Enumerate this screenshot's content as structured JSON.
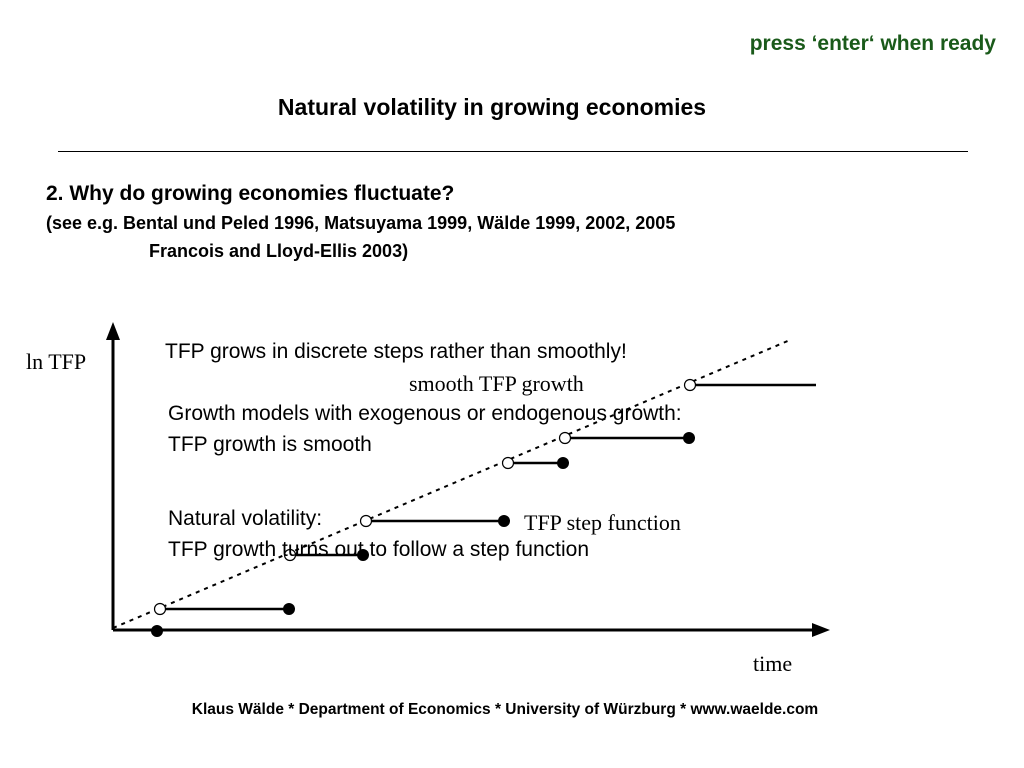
{
  "header": {
    "hint": "press ‘enter‘ when ready",
    "title": "Natural volatility in growing economies"
  },
  "section": {
    "question": "2. Why do growing economies fluctuate?",
    "refs_line1": "(see e.g. Bental und Peled 1996, Matsuyama 1999, Wälde 1999, 2002, 2005",
    "refs_line2": "Francois and Lloyd-Ellis 2003)"
  },
  "diagram": {
    "y_axis_label": "ln TFP",
    "x_axis_label": "time",
    "smooth_label": "smooth TFP growth",
    "step_label": "TFP step function",
    "text_main": "TFP grows in discrete steps rather than smoothly!",
    "text_models_1": "Growth models with exogenous or endogenous growth:",
    "text_models_2": "TFP growth is smooth",
    "text_natural_1": "Natural volatility:",
    "text_natural_2": "TFP growth turns out to follow a step function"
  },
  "footer": {
    "text": "Klaus Wälde  *  Department of Economics  * University of Würzburg *  www.waelde.com"
  }
}
